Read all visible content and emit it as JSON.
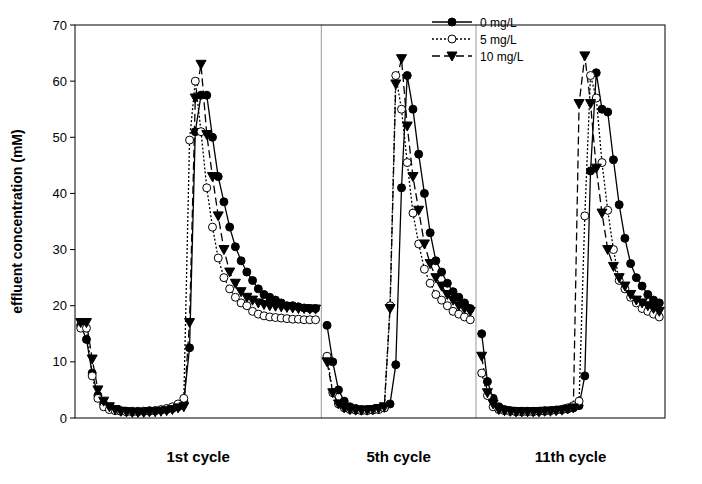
{
  "chart_data": {
    "type": "line",
    "y_label": "effluent concentration (mM)",
    "annotations": [
      "1st cycle",
      "5th cycle",
      "11th cycle"
    ],
    "x": [
      1,
      2,
      3,
      4,
      5,
      6,
      7,
      8,
      9,
      10,
      11,
      12,
      13,
      14,
      15,
      16,
      17,
      18,
      19,
      20,
      21,
      22,
      23,
      24,
      25,
      26,
      27,
      28,
      29,
      30,
      31,
      32,
      33,
      34,
      35,
      36,
      37,
      38,
      39,
      40,
      41,
      42,
      43,
      44,
      45,
      46,
      47,
      48,
      49,
      50,
      51,
      52,
      53,
      54,
      55,
      56,
      57,
      58,
      59,
      60,
      61,
      62,
      63,
      64,
      65,
      66,
      67,
      68,
      69,
      70,
      71,
      72,
      73,
      74,
      75,
      76,
      77,
      78,
      79,
      80,
      81,
      82,
      83,
      84,
      85,
      86,
      87,
      88,
      89,
      90,
      91,
      92,
      93,
      94,
      95,
      96,
      97,
      98,
      99,
      100,
      101,
      102
    ],
    "xlim": [
      0,
      103
    ],
    "ylim": [
      0,
      70
    ],
    "yticks": [
      0,
      10,
      20,
      30,
      40,
      50,
      60,
      70
    ],
    "tick_labels": "y",
    "grid": false,
    "legend": "top",
    "series": [
      {
        "name": "0 mg/L",
        "color": "#000000",
        "marker": "circle",
        "line_style": "solid",
        "values": [
          16.5,
          14,
          8,
          4,
          2.5,
          1.8,
          1.5,
          1.3,
          1.2,
          1.2,
          1.2,
          1.2,
          1.3,
          1.3,
          1.4,
          1.5,
          1.7,
          2,
          3,
          12.5,
          51,
          57.5,
          57.5,
          50,
          43,
          38.5,
          34,
          30.5,
          28,
          26,
          24.5,
          23,
          22,
          21.5,
          21,
          20.5,
          20,
          20,
          19.8,
          19.6,
          19.5,
          19.5,
          null,
          16.5,
          10,
          5,
          3,
          2,
          1.7,
          1.5,
          1.5,
          1.5,
          1.6,
          1.8,
          2.5,
          9.5,
          41,
          61,
          55,
          47,
          40,
          33,
          28,
          26,
          24,
          22.5,
          21.5,
          20.5,
          19.5,
          null,
          15,
          6.5,
          3.5,
          2,
          1.5,
          1.3,
          1.2,
          1.2,
          1.2,
          1.2,
          1.2,
          1.3,
          1.3,
          1.4,
          1.5,
          1.6,
          1.8,
          2.2,
          7.5,
          44,
          61.5,
          55,
          54.5,
          46,
          38,
          32,
          27.5,
          25,
          23.5,
          22,
          21,
          20.5
        ]
      },
      {
        "name": "5 mg/L",
        "color": "#000000",
        "marker": "open-circle",
        "line_style": "dotted",
        "values": [
          16,
          16,
          7.5,
          3.5,
          2,
          1.5,
          1.3,
          1.2,
          1.1,
          1.1,
          1.1,
          1.2,
          1.2,
          1.3,
          1.5,
          1.7,
          2,
          2.5,
          3.5,
          49.5,
          60,
          51,
          41,
          34,
          28.5,
          25,
          23,
          21.5,
          20.5,
          20,
          19,
          18.5,
          18.2,
          18,
          17.9,
          17.8,
          17.7,
          17.6,
          17.6,
          17.5,
          17.5,
          17.5,
          null,
          11,
          4.5,
          2.5,
          1.8,
          1.5,
          1.4,
          1.3,
          1.3,
          1.4,
          1.5,
          1.8,
          20,
          61,
          55,
          45.5,
          36.5,
          31,
          26.5,
          24,
          22,
          21,
          20,
          19,
          18.5,
          18,
          17.5,
          null,
          8,
          4,
          2,
          1.5,
          1.3,
          1.2,
          1.1,
          1.1,
          1.1,
          1.1,
          1.2,
          1.2,
          1.3,
          1.4,
          1.5,
          1.8,
          2.2,
          3,
          36,
          61,
          57,
          45.5,
          37,
          30,
          24.5,
          23,
          21.5,
          20.5,
          19.5,
          19,
          18.5,
          18
        ]
      },
      {
        "name": "10 mg/L",
        "color": "#000000",
        "marker": "triangle-down",
        "line_style": "dashed",
        "values": [
          17,
          17,
          10.5,
          5,
          3,
          2,
          1.5,
          1.2,
          1.1,
          1,
          1,
          1,
          1.1,
          1.1,
          1.2,
          1.3,
          1.5,
          1.8,
          2,
          17,
          57,
          63,
          50.5,
          43,
          36,
          30,
          26,
          24,
          22.5,
          21.5,
          21,
          20.5,
          20.2,
          20,
          19.9,
          19.8,
          19.7,
          19.6,
          19.5,
          19.5,
          19.4,
          19.4,
          null,
          10,
          4.5,
          2.5,
          1.8,
          1.5,
          1.4,
          1.4,
          1.4,
          1.5,
          1.7,
          2,
          19.5,
          59.5,
          64,
          52,
          43,
          37,
          31,
          27.5,
          25,
          23.5,
          22,
          21,
          20,
          19.5,
          19,
          null,
          11,
          4.5,
          2.5,
          1.5,
          1.3,
          1.2,
          1.1,
          1.1,
          1.1,
          1.1,
          1.1,
          1.2,
          1.2,
          1.3,
          1.4,
          1.6,
          1.8,
          56,
          64.5,
          56,
          44.5,
          36.5,
          30,
          27,
          25,
          23.5,
          22,
          21,
          20.5,
          20,
          19.5,
          19
        ]
      }
    ]
  }
}
